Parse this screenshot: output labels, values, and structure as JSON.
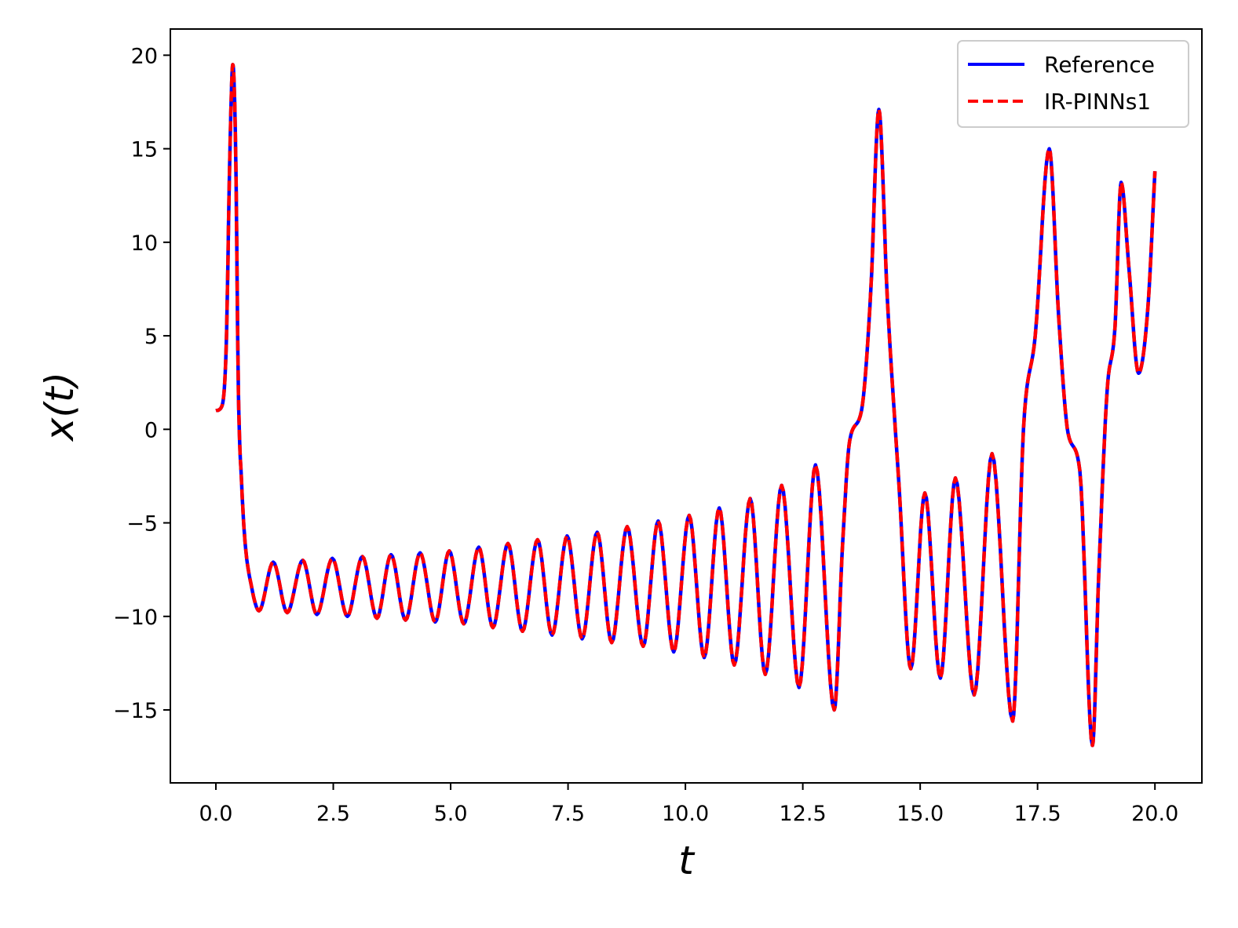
{
  "chart_data": {
    "type": "line",
    "xlabel": "t",
    "ylabel": "x(t)",
    "xlim": [
      -0.97,
      21.0
    ],
    "ylim": [
      -18.9,
      21.4
    ],
    "xticks": [
      0.0,
      2.5,
      5.0,
      7.5,
      10.0,
      12.5,
      15.0,
      17.5,
      20.0
    ],
    "xtick_labels": [
      "0.0",
      "2.5",
      "5.0",
      "7.5",
      "10.0",
      "12.5",
      "15.0",
      "17.5",
      "20.0"
    ],
    "yticks": [
      20,
      15,
      10,
      5,
      0,
      -5,
      -10,
      -15
    ],
    "ytick_labels": [
      "20",
      "15",
      "10",
      "5",
      "0",
      "−5",
      "−10",
      "−15"
    ],
    "grid": false,
    "legend_position": "top-right",
    "series": [
      {
        "name": "Reference",
        "color": "#0000ff",
        "style": "solid"
      },
      {
        "name": "IR-PINNs1",
        "color": "#ff0000",
        "style": "dashed"
      }
    ],
    "keypoints": [
      [
        0.0,
        1.0
      ],
      [
        0.12,
        1.2
      ],
      [
        0.22,
        4.5
      ],
      [
        0.3,
        15.0
      ],
      [
        0.36,
        19.5
      ],
      [
        0.42,
        15.0
      ],
      [
        0.48,
        2.0
      ],
      [
        0.55,
        -3.0
      ],
      [
        0.62,
        -6.0
      ],
      [
        0.75,
        -8.3
      ],
      [
        0.92,
        -9.7
      ],
      [
        1.22,
        -7.1
      ],
      [
        1.52,
        -9.8
      ],
      [
        1.85,
        -7.0
      ],
      [
        2.15,
        -9.9
      ],
      [
        2.48,
        -6.9
      ],
      [
        2.8,
        -10.0
      ],
      [
        3.12,
        -6.8
      ],
      [
        3.43,
        -10.1
      ],
      [
        3.73,
        -6.7
      ],
      [
        4.04,
        -10.2
      ],
      [
        4.35,
        -6.6
      ],
      [
        4.67,
        -10.3
      ],
      [
        4.97,
        -6.5
      ],
      [
        5.28,
        -10.4
      ],
      [
        5.6,
        -6.3
      ],
      [
        5.9,
        -10.6
      ],
      [
        6.22,
        -6.1
      ],
      [
        6.53,
        -10.8
      ],
      [
        6.85,
        -5.9
      ],
      [
        7.16,
        -11.0
      ],
      [
        7.48,
        -5.7
      ],
      [
        7.8,
        -11.2
      ],
      [
        8.12,
        -5.5
      ],
      [
        8.43,
        -11.4
      ],
      [
        8.76,
        -5.2
      ],
      [
        9.1,
        -11.6
      ],
      [
        9.42,
        -4.9
      ],
      [
        9.75,
        -11.9
      ],
      [
        10.08,
        -4.6
      ],
      [
        10.4,
        -12.2
      ],
      [
        10.72,
        -4.2
      ],
      [
        11.04,
        -12.6
      ],
      [
        11.38,
        -3.7
      ],
      [
        11.7,
        -13.1
      ],
      [
        12.05,
        -3.0
      ],
      [
        12.42,
        -13.8
      ],
      [
        12.77,
        -1.9
      ],
      [
        13.17,
        -15.0
      ],
      [
        13.35,
        -6.0
      ],
      [
        13.5,
        -0.6
      ],
      [
        13.75,
        1.0
      ],
      [
        13.95,
        7.5
      ],
      [
        14.12,
        17.1
      ],
      [
        14.3,
        7.0
      ],
      [
        14.55,
        -3.0
      ],
      [
        14.8,
        -12.8
      ],
      [
        15.1,
        -3.4
      ],
      [
        15.43,
        -13.3
      ],
      [
        15.75,
        -2.6
      ],
      [
        16.15,
        -14.2
      ],
      [
        16.53,
        -1.3
      ],
      [
        16.97,
        -15.6
      ],
      [
        17.2,
        0.0
      ],
      [
        17.45,
        5.0
      ],
      [
        17.75,
        15.0
      ],
      [
        17.95,
        6.0
      ],
      [
        18.15,
        -0.2
      ],
      [
        18.4,
        -2.2
      ],
      [
        18.67,
        -16.9
      ],
      [
        18.8,
        -8.0
      ],
      [
        18.98,
        2.0
      ],
      [
        19.15,
        5.5
      ],
      [
        19.28,
        13.2
      ],
      [
        19.45,
        8.5
      ],
      [
        19.65,
        3.0
      ],
      [
        19.85,
        6.5
      ],
      [
        20.0,
        13.8
      ]
    ]
  },
  "legend": {
    "items": [
      {
        "label": "Reference"
      },
      {
        "label": "IR-PINNs1"
      }
    ]
  }
}
